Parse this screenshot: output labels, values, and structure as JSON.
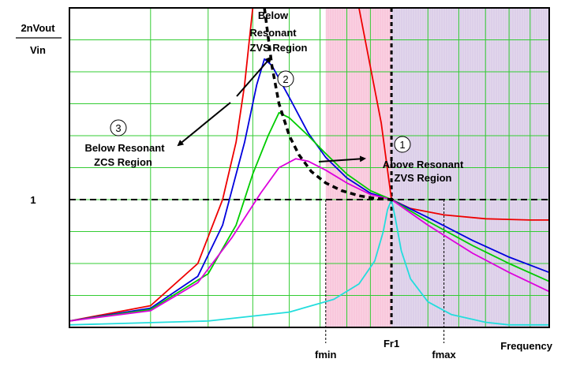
{
  "chart_data": {
    "type": "line",
    "title": "",
    "ylabel_top": "2nVout",
    "ylabel_bottom": "Vin",
    "xlabel": "Frequency",
    "x_scale": "log",
    "xlim": [
      0.2,
      2.2
    ],
    "ylim": [
      0,
      2.5
    ],
    "grid": true,
    "y_ticks": [
      {
        "value": 1,
        "label": "1"
      }
    ],
    "x_markers": [
      {
        "value": 0.72,
        "label": "fmin",
        "style": "dashed"
      },
      {
        "value": 1.0,
        "label": "Fr1",
        "style": "thick-dashed"
      },
      {
        "value": 1.3,
        "label": "fmax",
        "style": "dashed"
      }
    ],
    "reference_lines": [
      {
        "axis": "y",
        "value": 1,
        "style": "dashed"
      }
    ],
    "regions": [
      {
        "name": "below-resonant-zvs",
        "x": [
          0.72,
          1.0
        ],
        "color": "#f9c8dc"
      },
      {
        "name": "above-resonant-zvs",
        "x": [
          1.0,
          2.2
        ],
        "color": "#dccfe9"
      }
    ],
    "boundary_curve": {
      "style": "thick-dashed",
      "x": [
        0.53,
        0.55,
        0.57,
        0.6,
        0.63,
        0.67,
        0.72,
        0.78,
        0.85,
        0.92,
        1.0
      ],
      "y": [
        2.5,
        2.05,
        1.75,
        1.5,
        1.35,
        1.22,
        1.13,
        1.07,
        1.03,
        1.01,
        1.0
      ]
    },
    "series": [
      {
        "color": "#ee0000",
        "x": [
          0.2,
          0.3,
          0.38,
          0.43,
          0.46,
          0.48,
          0.5,
          0.52,
          0.6,
          0.72,
          0.85,
          0.95,
          1.0,
          1.1,
          1.3,
          1.6,
          2.0,
          2.2
        ],
        "y": [
          0.05,
          0.17,
          0.5,
          1.0,
          1.45,
          1.9,
          2.5,
          2.5,
          2.5,
          2.5,
          2.5,
          1.6,
          1.0,
          0.93,
          0.88,
          0.85,
          0.84,
          0.84
        ]
      },
      {
        "color": "#0000dd",
        "x": [
          0.2,
          0.3,
          0.38,
          0.43,
          0.48,
          0.51,
          0.53,
          0.55,
          0.6,
          0.66,
          0.72,
          0.8,
          0.9,
          1.0,
          1.2,
          1.5,
          1.8,
          2.2
        ],
        "y": [
          0.05,
          0.15,
          0.4,
          0.8,
          1.45,
          1.9,
          2.1,
          2.05,
          1.8,
          1.52,
          1.33,
          1.17,
          1.05,
          1.0,
          0.86,
          0.68,
          0.55,
          0.43
        ]
      },
      {
        "color": "#00cc00",
        "x": [
          0.2,
          0.3,
          0.4,
          0.46,
          0.5,
          0.54,
          0.57,
          0.6,
          0.66,
          0.72,
          0.8,
          0.9,
          1.0,
          1.2,
          1.5,
          1.8,
          2.2
        ],
        "y": [
          0.05,
          0.14,
          0.42,
          0.8,
          1.2,
          1.5,
          1.68,
          1.64,
          1.5,
          1.36,
          1.2,
          1.07,
          1.0,
          0.83,
          0.64,
          0.5,
          0.36
        ]
      },
      {
        "color": "#dd00dd",
        "x": [
          0.2,
          0.3,
          0.38,
          0.45,
          0.52,
          0.57,
          0.62,
          0.66,
          0.72,
          0.8,
          0.9,
          1.0,
          1.2,
          1.5,
          1.8,
          2.2
        ],
        "y": [
          0.05,
          0.13,
          0.35,
          0.7,
          1.05,
          1.25,
          1.32,
          1.3,
          1.23,
          1.13,
          1.04,
          1.0,
          0.8,
          0.58,
          0.43,
          0.28
        ]
      },
      {
        "color": "#22dddd",
        "x": [
          0.2,
          0.4,
          0.6,
          0.75,
          0.85,
          0.92,
          0.96,
          0.98,
          1.0,
          1.02,
          1.05,
          1.1,
          1.2,
          1.35,
          1.6,
          1.8,
          2.2
        ],
        "y": [
          0.02,
          0.05,
          0.12,
          0.22,
          0.34,
          0.52,
          0.75,
          0.92,
          1.0,
          0.85,
          0.6,
          0.38,
          0.2,
          0.1,
          0.04,
          0.02,
          0.02
        ]
      }
    ],
    "annotations": [
      {
        "num": "1",
        "lines": [
          "Above Resonant",
          "ZVS Region"
        ]
      },
      {
        "num": "2",
        "lines": [
          "Below",
          "Resonant",
          "ZVS Region"
        ]
      },
      {
        "num": "3",
        "lines": [
          "Below Resonant",
          "ZCS Region"
        ]
      }
    ]
  }
}
